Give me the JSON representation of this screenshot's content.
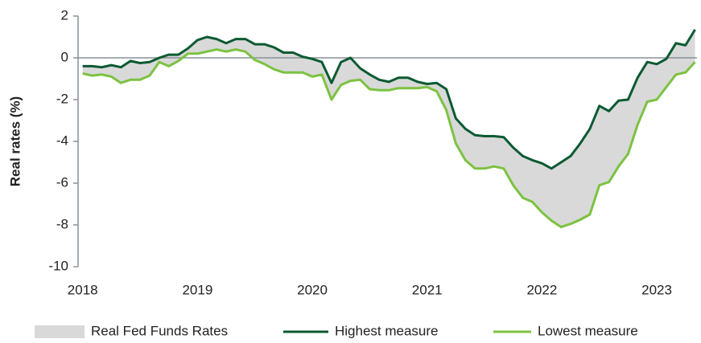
{
  "chart_data": {
    "type": "line",
    "ylabel": "Real rates (%)",
    "x": [
      2018,
      2018.083,
      2018.167,
      2018.25,
      2018.333,
      2018.417,
      2018.5,
      2018.583,
      2018.667,
      2018.75,
      2018.833,
      2018.917,
      2019,
      2019.083,
      2019.167,
      2019.25,
      2019.333,
      2019.417,
      2019.5,
      2019.583,
      2019.667,
      2019.75,
      2019.833,
      2019.917,
      2020,
      2020.083,
      2020.167,
      2020.25,
      2020.333,
      2020.417,
      2020.5,
      2020.583,
      2020.667,
      2020.75,
      2020.833,
      2020.917,
      2021,
      2021.083,
      2021.167,
      2021.25,
      2021.333,
      2021.417,
      2021.5,
      2021.583,
      2021.667,
      2021.75,
      2021.833,
      2021.917,
      2022,
      2022.083,
      2022.167,
      2022.25,
      2022.333,
      2022.417,
      2022.5,
      2022.583,
      2022.667,
      2022.75,
      2022.833,
      2022.917,
      2023,
      2023.083,
      2023.167,
      2023.25,
      2023.333
    ],
    "band": {
      "name": "Real Fed Funds Rates",
      "color": "#d9d9d9"
    },
    "series": [
      {
        "name": "Highest measure",
        "color": "#0b5a32",
        "values": [
          -0.4,
          -0.4,
          -0.45,
          -0.35,
          -0.45,
          -0.15,
          -0.25,
          -0.2,
          0.0,
          0.15,
          0.15,
          0.45,
          0.85,
          1.0,
          0.9,
          0.7,
          0.9,
          0.9,
          0.65,
          0.65,
          0.5,
          0.25,
          0.25,
          0.05,
          -0.05,
          -0.2,
          -1.2,
          -0.2,
          0.0,
          -0.5,
          -0.8,
          -1.05,
          -1.15,
          -0.95,
          -0.95,
          -1.15,
          -1.25,
          -1.2,
          -1.5,
          -2.9,
          -3.4,
          -3.7,
          -3.75,
          -3.75,
          -3.8,
          -4.3,
          -4.7,
          -4.9,
          -5.05,
          -5.3,
          -5.0,
          -4.7,
          -4.1,
          -3.4,
          -2.3,
          -2.55,
          -2.05,
          -2.0,
          -0.95,
          -0.2,
          -0.3,
          -0.05,
          0.7,
          0.6,
          1.35
        ]
      },
      {
        "name": "Lowest measure",
        "color": "#7cc242",
        "values": [
          -0.75,
          -0.85,
          -0.8,
          -0.9,
          -1.2,
          -1.05,
          -1.05,
          -0.85,
          -0.2,
          -0.4,
          -0.15,
          0.2,
          0.2,
          0.3,
          0.4,
          0.3,
          0.4,
          0.3,
          -0.1,
          -0.3,
          -0.55,
          -0.7,
          -0.7,
          -0.7,
          -0.9,
          -0.8,
          -2.0,
          -1.3,
          -1.1,
          -1.05,
          -1.5,
          -1.55,
          -1.55,
          -1.45,
          -1.45,
          -1.45,
          -1.4,
          -1.6,
          -2.5,
          -4.1,
          -4.9,
          -5.3,
          -5.3,
          -5.2,
          -5.3,
          -6.1,
          -6.7,
          -6.9,
          -7.4,
          -7.8,
          -8.1,
          -7.95,
          -7.75,
          -7.5,
          -6.1,
          -5.95,
          -5.2,
          -4.6,
          -3.2,
          -2.1,
          -2.0,
          -1.4,
          -0.8,
          -0.7,
          -0.2
        ]
      }
    ],
    "xlim": [
      2017.96,
      2023.35
    ],
    "xticks": [
      2018,
      2019,
      2020,
      2021,
      2022,
      2023
    ],
    "ylim": [
      -10,
      2
    ],
    "yticks": [
      -10,
      -8,
      -6,
      -4,
      -2,
      0,
      2
    ],
    "legend": "bottom"
  }
}
